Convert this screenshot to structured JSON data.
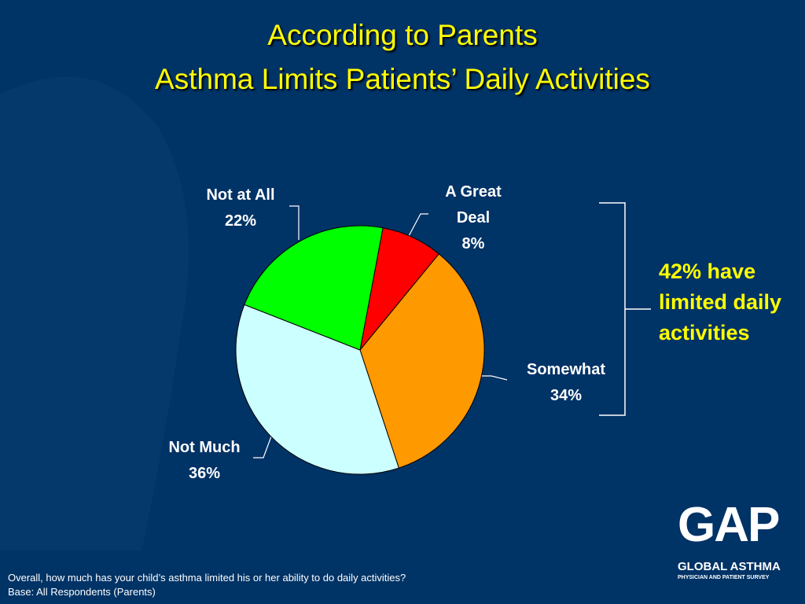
{
  "chart_data": {
    "type": "pie",
    "title": "According to Parents",
    "subtitle": "Asthma Limits Patients’ Daily Activities",
    "categories": [
      "A Great Deal",
      "Somewhat",
      "Not Much",
      "Not at All"
    ],
    "values": [
      8,
      34,
      36,
      22
    ],
    "value_labels": [
      "8%",
      "34%",
      "36%",
      "22%"
    ],
    "colors": [
      "#ff0000",
      "#ff9900",
      "#ccffff",
      "#00ff00"
    ],
    "annotation": "42% have limited daily activities"
  },
  "notes": [
    "Overall, how much has your child’s asthma limited his or her ability to do daily activities?",
    "Base: All Respondents (Parents)"
  ],
  "logo": {
    "mark": "GAP",
    "name": "GLOBAL ASTHMA",
    "tagline": "PHYSICIAN AND PATIENT SURVEY"
  }
}
